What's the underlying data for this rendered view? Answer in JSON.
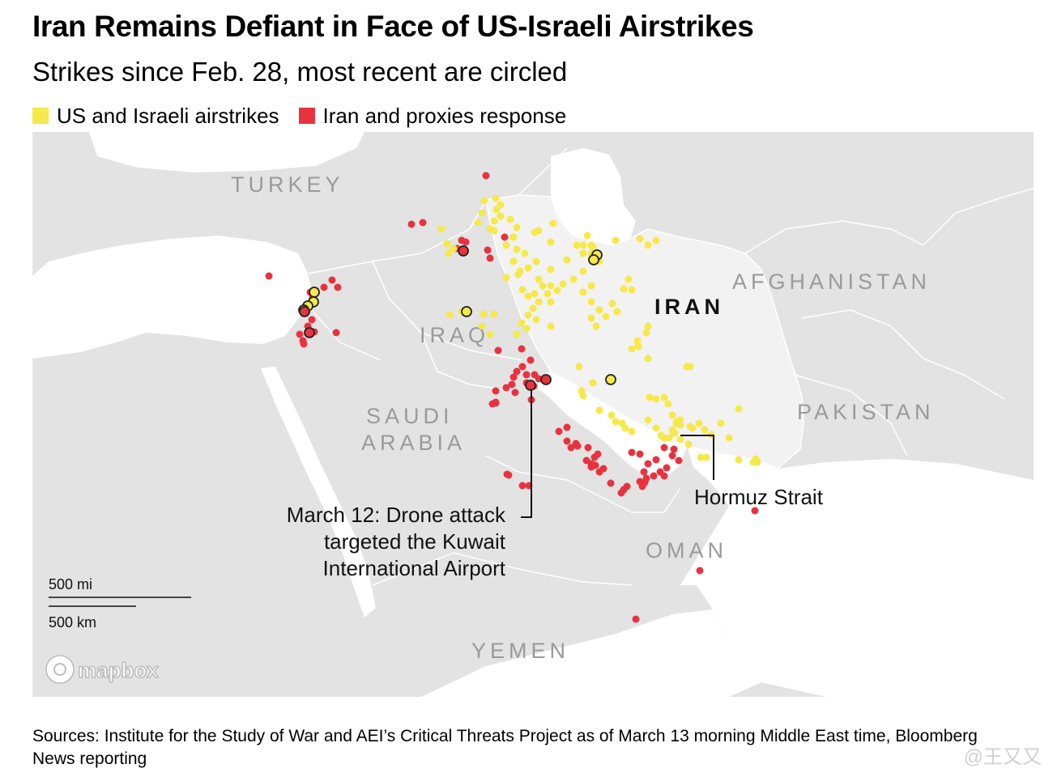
{
  "title": "Iran Remains Defiant in Face of US-Israeli Airstrikes",
  "subtitle": "Strikes since Feb. 28, most recent are circled",
  "legend": [
    {
      "label": "US and Israeli airstrikes",
      "color": "#f7e84b"
    },
    {
      "label": "Iran and proxies response",
      "color": "#e8323f"
    }
  ],
  "colors": {
    "water": "#ffffff",
    "land_other": "#e3e3e3",
    "land_focus": "#f0f0f0",
    "border": "#ffffff",
    "yellow": "#f7e84b",
    "red": "#e8323f"
  },
  "map": {
    "country_labels": {
      "turkey": "TURKEY",
      "iraq": "IRAQ",
      "iran": "IRAN",
      "afghanistan": "AFGHANISTAN",
      "pakistan": "PAKISTAN",
      "saudi_line1": "SAUDI",
      "saudi_line2": "ARABIA",
      "oman": "OMAN",
      "yemen": "YEMEN"
    },
    "annotations": {
      "kuwait_line1": "March 12: Drone attack",
      "kuwait_line2": "targeted the Kuwait",
      "kuwait_line3": "International Airport",
      "hormuz": "Hormuz Strait"
    },
    "scale": {
      "miles": "500 mi",
      "km": "500 km"
    },
    "attribution": "mapbox"
  },
  "source": "Sources: Institute for the Study of War and AEI’s Critical Threats Project as of March 13 morning Middle East time, Bloomberg News reporting",
  "watermark": "@王又又"
}
